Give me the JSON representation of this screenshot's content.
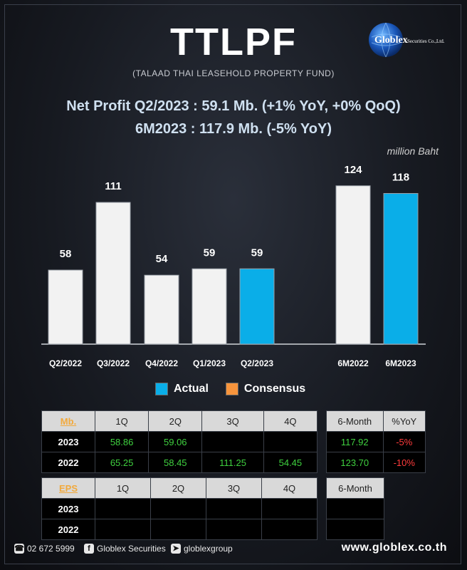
{
  "header": {
    "title": "TTLPF",
    "subtitle": "(TALAAD THAI LEASEHOLD PROPERTY FUND)",
    "logo_name": "Globlex",
    "logo_suffix": "Securities Co.,Ltd.",
    "headline1": "Net Profit  Q2/2023 : 59.1 Mb. (+1% YoY, +0% QoQ)",
    "headline2": "6M2023 : 117.9 Mb. (-5% YoY)",
    "unit": "million Baht"
  },
  "chart_data": {
    "type": "bar",
    "title": "",
    "categories": [
      "Q2/2022",
      "Q3/2022",
      "Q4/2022",
      "Q1/2023",
      "Q2/2023",
      "6M2022",
      "6M2023"
    ],
    "values": [
      58,
      111,
      54,
      59,
      59,
      124,
      118
    ],
    "labels": [
      "58",
      "111",
      "54",
      "59",
      "59",
      "124",
      "118"
    ],
    "highlight": [
      "Q2/2023",
      "6M2023"
    ],
    "xlabel": "",
    "ylabel": "",
    "ylim": [
      0,
      130
    ],
    "grid": false,
    "colors": {
      "default": "#f2f2f2",
      "highlight": "#0aaee8"
    },
    "legend": [
      {
        "name": "Actual",
        "color": "#0aaee8"
      },
      {
        "name": "Consensus",
        "color": "#f7943c"
      }
    ]
  },
  "mb_table": {
    "head": [
      "Mb.",
      "1Q",
      "2Q",
      "3Q",
      "4Q"
    ],
    "rows": [
      {
        "year": "2023",
        "q1": "58.86",
        "q2": "59.06",
        "q3": "",
        "q4": ""
      },
      {
        "year": "2022",
        "q1": "65.25",
        "q2": "58.45",
        "q3": "111.25",
        "q4": "54.45"
      }
    ]
  },
  "mb_summary": {
    "head": [
      "6-Month",
      "%YoY"
    ],
    "rows": [
      {
        "six_month": "117.92",
        "yoy": "-5%"
      },
      {
        "six_month": "123.70",
        "yoy": "-10%"
      }
    ]
  },
  "eps_table": {
    "head": [
      "EPS",
      "1Q",
      "2Q",
      "3Q",
      "4Q"
    ],
    "rows": [
      {
        "year": "2023"
      },
      {
        "year": "2022"
      }
    ]
  },
  "eps_summary": {
    "head": [
      "6-Month"
    ]
  },
  "footer": {
    "phone": "02 672 5999",
    "facebook": "Globlex Securities",
    "telegram": "globlexgroup",
    "website": "www.globlex.co.th"
  }
}
